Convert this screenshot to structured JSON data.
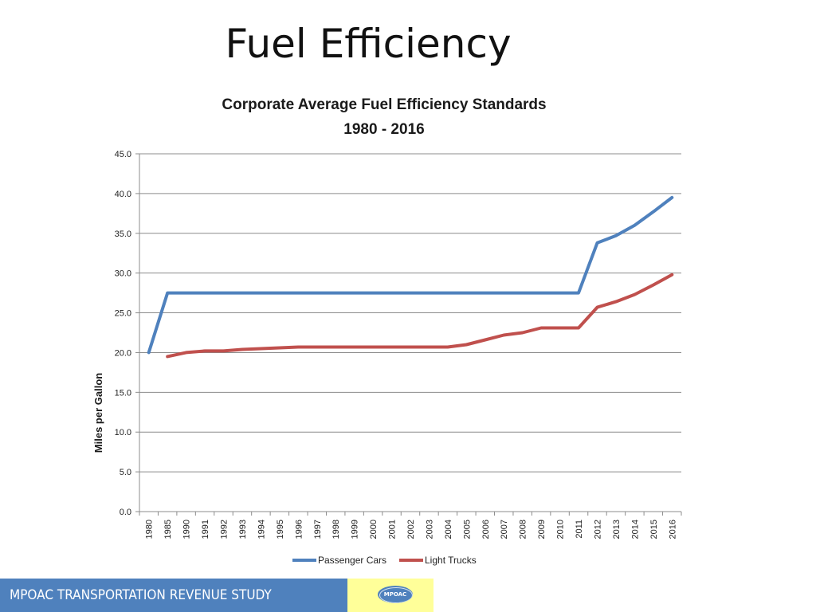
{
  "slide": {
    "title": "Fuel Efficiency",
    "footer_text": "MPOAC TRANSPORTATION REVENUE STUDY",
    "logo_text": "MPOAC"
  },
  "colors": {
    "passenger_cars": "#4f81bd",
    "light_trucks": "#c0504d",
    "footer_bar": "#4f81bd",
    "logo_box": "#ffff99"
  },
  "chart_data": {
    "type": "line",
    "title": "Corporate Average Fuel Efficiency Standards",
    "subtitle": "1980 - 2016",
    "xlabel": "",
    "ylabel": "Miles per Gallon",
    "ylim": [
      0,
      45
    ],
    "yticks": [
      "0.0",
      "5.0",
      "10.0",
      "15.0",
      "20.0",
      "25.0",
      "30.0",
      "35.0",
      "40.0",
      "45.0"
    ],
    "grid": true,
    "legend_position": "bottom",
    "categories": [
      "1980",
      "1985",
      "1990",
      "1991",
      "1992",
      "1993",
      "1994",
      "1995",
      "1996",
      "1997",
      "1998",
      "1999",
      "2000",
      "2001",
      "2002",
      "2003",
      "2004",
      "2005",
      "2006",
      "2007",
      "2008",
      "2009",
      "2010",
      "2011",
      "2012",
      "2013",
      "2014",
      "2015",
      "2016"
    ],
    "series": [
      {
        "name": "Passenger Cars",
        "values": [
          20.0,
          27.5,
          27.5,
          27.5,
          27.5,
          27.5,
          27.5,
          27.5,
          27.5,
          27.5,
          27.5,
          27.5,
          27.5,
          27.5,
          27.5,
          27.5,
          27.5,
          27.5,
          27.5,
          27.5,
          27.5,
          27.5,
          27.5,
          27.5,
          33.8,
          34.7,
          36.0,
          37.7,
          39.5
        ]
      },
      {
        "name": "Light Trucks",
        "values": [
          null,
          19.5,
          20.0,
          20.2,
          20.2,
          20.4,
          20.5,
          20.6,
          20.7,
          20.7,
          20.7,
          20.7,
          20.7,
          20.7,
          20.7,
          20.7,
          20.7,
          21.0,
          21.6,
          22.2,
          22.5,
          23.1,
          23.1,
          23.1,
          25.7,
          26.4,
          27.3,
          28.5,
          29.8
        ]
      }
    ]
  }
}
